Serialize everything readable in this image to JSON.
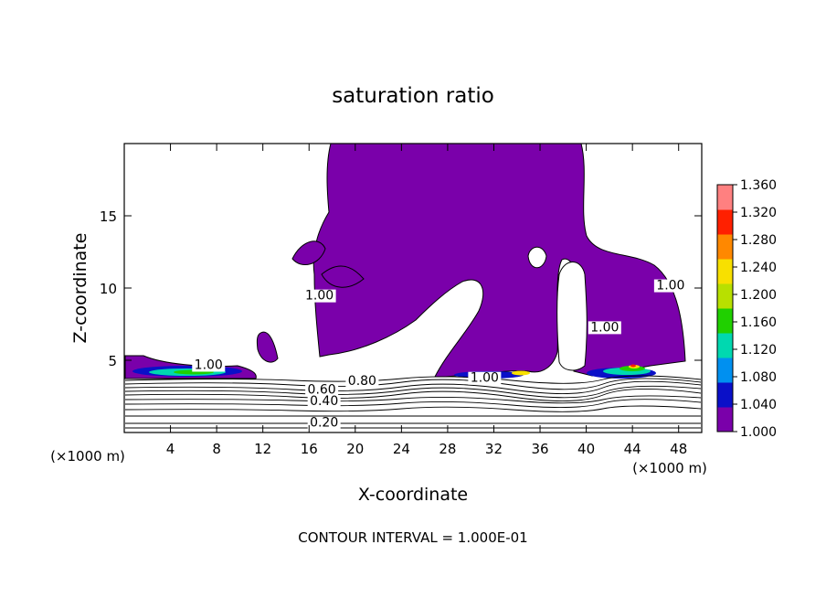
{
  "chart_data": {
    "type": "contour",
    "title": "saturation ratio",
    "xlabel": "X-coordinate",
    "ylabel": "Z-coordinate",
    "x_unit_label": "(×1000 m)",
    "y_unit_label": "(×1000 m)",
    "xlim": [
      0,
      50
    ],
    "ylim": [
      0,
      20
    ],
    "x_ticks": [
      4,
      8,
      12,
      16,
      20,
      24,
      28,
      32,
      36,
      40,
      44,
      48
    ],
    "y_ticks": [
      5,
      10,
      15
    ],
    "footer": "CONTOUR INTERVAL = 1.000E-01",
    "colorbar": {
      "min": 1.0,
      "max": 1.36,
      "ticks": [
        "1.360",
        "1.320",
        "1.280",
        "1.240",
        "1.200",
        "1.160",
        "1.120",
        "1.080",
        "1.040",
        "1.000"
      ],
      "colors": [
        "#7a00aa",
        "#0a10c8",
        "#0090f0",
        "#00d8b0",
        "#20d000",
        "#b8e000",
        "#f8e000",
        "#ff8800",
        "#ff2000",
        "#ff8080"
      ]
    },
    "contour_labels": [
      {
        "text": "1.00",
        "x": 7.3,
        "z": 4.4
      },
      {
        "text": "1.00",
        "x": 16.9,
        "z": 9.2
      },
      {
        "text": "0.80",
        "x": 20.6,
        "z": 3.3
      },
      {
        "text": "0.60",
        "x": 17.1,
        "z": 2.7
      },
      {
        "text": "0.40",
        "x": 17.3,
        "z": 1.9
      },
      {
        "text": "0.20",
        "x": 17.3,
        "z": 0.4
      },
      {
        "text": "1.00",
        "x": 31.2,
        "z": 3.5
      },
      {
        "text": "1.00",
        "x": 41.6,
        "z": 7.0
      },
      {
        "text": "1.00",
        "x": 47.3,
        "z": 9.9
      }
    ]
  }
}
